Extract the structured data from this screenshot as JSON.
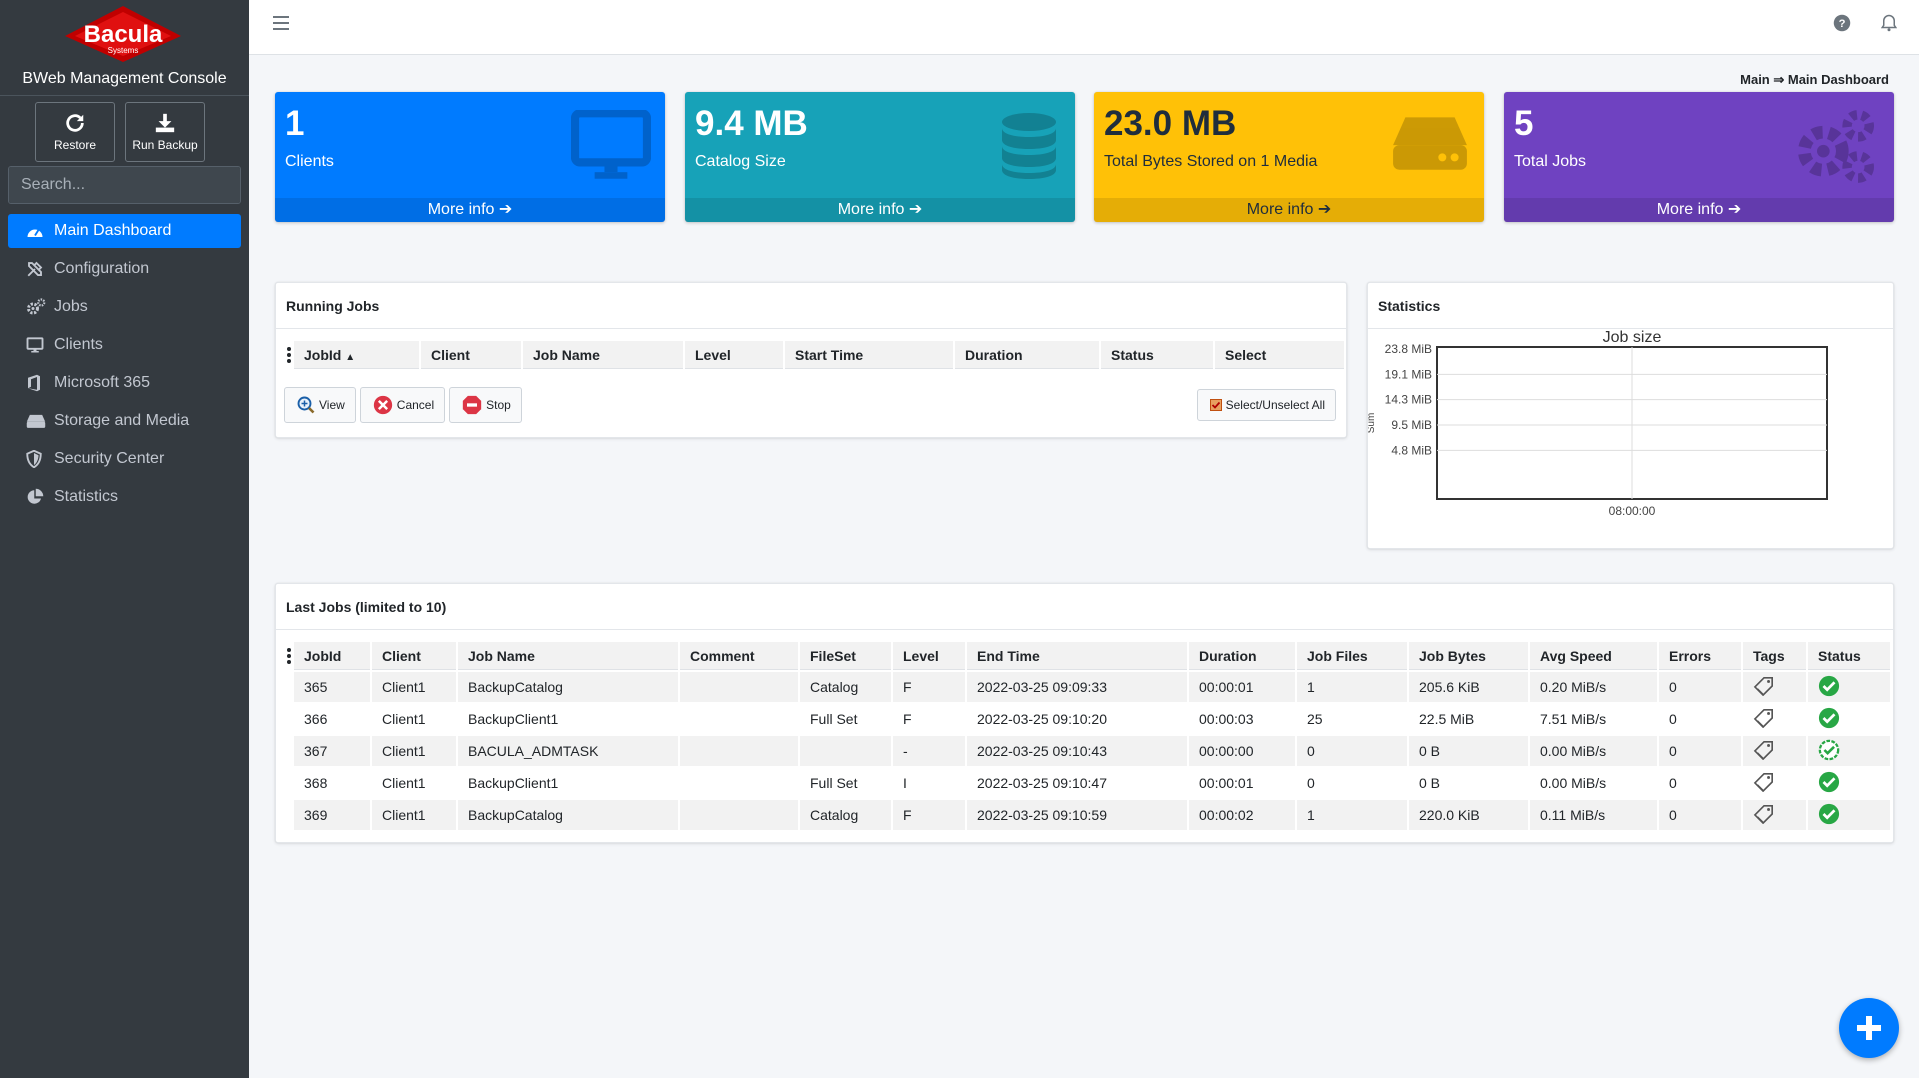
{
  "app": {
    "logo_text": "Bacula",
    "logo_sub": "Systems",
    "console_title": "BWeb Management Console"
  },
  "quick_actions": {
    "restore_label": "Restore",
    "run_backup_label": "Run Backup"
  },
  "search": {
    "placeholder": "Search..."
  },
  "sidebar": {
    "items": [
      {
        "label": "Main Dashboard",
        "icon": "dashboard-icon",
        "active": true
      },
      {
        "label": "Configuration",
        "icon": "tools-icon"
      },
      {
        "label": "Jobs",
        "icon": "cogs-icon"
      },
      {
        "label": "Clients",
        "icon": "desktop-icon"
      },
      {
        "label": "Microsoft 365",
        "icon": "office-icon"
      },
      {
        "label": "Storage and Media",
        "icon": "hdd-icon"
      },
      {
        "label": "Security Center",
        "icon": "shield-icon"
      },
      {
        "label": "Statistics",
        "icon": "pie-chart-icon"
      }
    ]
  },
  "breadcrumb": "Main ⇒ Main Dashboard",
  "info_boxes": [
    {
      "value": "1",
      "label": "Clients",
      "more": "More info",
      "color": "#007bff",
      "icon": "desktop-icon"
    },
    {
      "value": "9.4 MB",
      "label": "Catalog Size",
      "more": "More info",
      "color": "#17a2b8",
      "icon": "database-icon"
    },
    {
      "value": "23.0 MB",
      "label": "Total Bytes Stored on 1 Media",
      "more": "More info",
      "color": "#ffc107",
      "icon": "hdd-icon"
    },
    {
      "value": "5",
      "label": "Total Jobs",
      "more": "More info",
      "color": "#6f42c1",
      "icon": "cogs-icon"
    }
  ],
  "running_jobs": {
    "title": "Running Jobs",
    "columns": [
      "JobId",
      "Client",
      "Job Name",
      "Level",
      "Start Time",
      "Duration",
      "Status",
      "Select"
    ],
    "buttons": {
      "view": "View",
      "cancel": "Cancel",
      "stop": "Stop",
      "select_all": "Select/Unselect All"
    }
  },
  "statistics": {
    "title": "Statistics"
  },
  "chart_data": {
    "type": "line",
    "title": "Job size",
    "ylabel": "Sum",
    "y_ticks": [
      "23.8 MiB",
      "19.1 MiB",
      "14.3 MiB",
      "9.5 MiB",
      "4.8 MiB"
    ],
    "x_ticks": [
      "08:00:00"
    ],
    "series": [],
    "grid": true
  },
  "last_jobs": {
    "title": "Last Jobs (limited to 10)",
    "columns": [
      "JobId",
      "Client",
      "Job Name",
      "Comment",
      "FileSet",
      "Level",
      "End Time",
      "Duration",
      "Job Files",
      "Job Bytes",
      "Avg Speed",
      "Errors",
      "Tags",
      "Status"
    ],
    "rows": [
      [
        "365",
        "Client1",
        "BackupCatalog",
        "",
        "Catalog",
        "F",
        "2022-03-25 09:09:33",
        "00:00:01",
        "1",
        "205.6 KiB",
        "0.20 MiB/s",
        "0"
      ],
      [
        "366",
        "Client1",
        "BackupClient1",
        "",
        "Full Set",
        "F",
        "2022-03-25 09:10:20",
        "00:00:03",
        "25",
        "22.5 MiB",
        "7.51 MiB/s",
        "0"
      ],
      [
        "367",
        "Client1",
        "BACULA_ADMTASK",
        "",
        "",
        "-",
        "2022-03-25 09:10:43",
        "00:00:00",
        "0",
        "0 B",
        "0.00 MiB/s",
        "0"
      ],
      [
        "368",
        "Client1",
        "BackupClient1",
        "",
        "Full Set",
        "I",
        "2022-03-25 09:10:47",
        "00:00:01",
        "0",
        "0 B",
        "0.00 MiB/s",
        "0"
      ],
      [
        "369",
        "Client1",
        "BackupCatalog",
        "",
        "Catalog",
        "F",
        "2022-03-25 09:10:59",
        "00:00:02",
        "1",
        "220.0 KiB",
        "0.11 MiB/s",
        "0"
      ]
    ],
    "status_color": "#28a745"
  }
}
